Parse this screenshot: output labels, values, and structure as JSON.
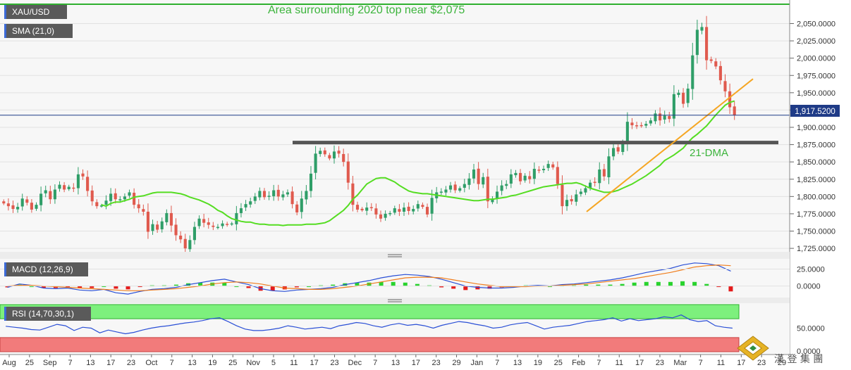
{
  "instrument": "XAU/USD",
  "price_label": "1,917.5200",
  "indicators": {
    "sma": "SMA (21,0)",
    "macd": "MACD (12,26,9)",
    "rsi": "RSI (14,70,30,1)"
  },
  "annotations": {
    "top_note": "Area surrounding 2020 top near $2,075",
    "dma_label": "21-DMA"
  },
  "watermark_text": "漢 登 集 團",
  "x_ticks": [
    "Aug",
    "25",
    "Sep",
    "7",
    "13",
    "17",
    "23",
    "Oct",
    "7",
    "13",
    "19",
    "25",
    "Nov",
    "5",
    "11",
    "17",
    "23",
    "Dec",
    "7",
    "13",
    "17",
    "23",
    "29",
    "Jan",
    "7",
    "13",
    "19",
    "25",
    "Feb",
    "7",
    "11",
    "17",
    "23",
    "Mar",
    "7",
    "11",
    "17",
    "23",
    "29"
  ],
  "chart_data": [
    {
      "type": "candlestick",
      "title": "XAU/USD",
      "ylim": [
        1720,
        2080
      ],
      "y_ticks": [
        "2,050.0000",
        "2,025.0000",
        "2,000.0000",
        "1,975.0000",
        "1,950.0000",
        "1,925.0000",
        "1,900.0000",
        "1,875.0000",
        "1,850.0000",
        "1,825.0000",
        "1,800.0000",
        "1,775.0000",
        "1,750.0000",
        "1,725.0000"
      ],
      "last_price": 1917.52,
      "support_level": 1878,
      "resistance_level": 2078,
      "trendline": [
        [
          1778,
          1970
        ]
      ],
      "sma_period": 21,
      "close_series": [
        1790,
        1786,
        1782,
        1785,
        1797,
        1791,
        1781,
        1788,
        1804,
        1809,
        1796,
        1810,
        1817,
        1810,
        1814,
        1812,
        1832,
        1829,
        1808,
        1793,
        1786,
        1787,
        1794,
        1804,
        1796,
        1796,
        1800,
        1806,
        1788,
        1783,
        1778,
        1749,
        1760,
        1752,
        1764,
        1776,
        1758,
        1744,
        1738,
        1725,
        1737,
        1756,
        1768,
        1762,
        1759,
        1756,
        1756,
        1761,
        1759,
        1761,
        1776,
        1783,
        1789,
        1793,
        1800,
        1808,
        1799,
        1801,
        1809,
        1800,
        1803,
        1806,
        1789,
        1777,
        1797,
        1808,
        1833,
        1862,
        1866,
        1861,
        1855,
        1865,
        1862,
        1850,
        1820,
        1788,
        1781,
        1780,
        1784,
        1784,
        1774,
        1768,
        1775,
        1776,
        1783,
        1778,
        1784,
        1779,
        1782,
        1789,
        1785,
        1774,
        1798,
        1806,
        1807,
        1810,
        1816,
        1809,
        1812,
        1818,
        1826,
        1839,
        1818,
        1828,
        1793,
        1797,
        1807,
        1816,
        1818,
        1832,
        1834,
        1822,
        1830,
        1825,
        1840,
        1838,
        1840,
        1847,
        1842,
        1818,
        1786,
        1795,
        1793,
        1803,
        1807,
        1812,
        1820,
        1820,
        1839,
        1829,
        1858,
        1870,
        1865,
        1877,
        1908,
        1903,
        1902,
        1903,
        1905,
        1910,
        1920,
        1910,
        1917,
        1912,
        1948,
        1950,
        1934,
        1956,
        2004,
        2041,
        2045,
        1997,
        1996,
        1988,
        1968,
        1952,
        1929,
        1917.52
      ],
      "sma_series": [
        1788,
        1786,
        1790,
        1792,
        1792,
        1794,
        1796,
        1799,
        1800,
        1801,
        1803,
        1805,
        1806,
        1806,
        1806,
        1806,
        1805,
        1804,
        1802,
        1799,
        1797,
        1795,
        1792,
        1789,
        1785,
        1780,
        1777,
        1772,
        1768,
        1766,
        1764,
        1763,
        1763,
        1761,
        1760,
        1760,
        1759,
        1759,
        1759,
        1758,
        1759,
        1759,
        1759,
        1759,
        1760,
        1760,
        1760,
        1761,
        1762,
        1765,
        1770,
        1775,
        1780,
        1787,
        1796,
        1802,
        1810,
        1818,
        1822,
        1826,
        1827,
        1827,
        1824,
        1821,
        1816,
        1812,
        1808,
        1806,
        1805,
        1804,
        1804,
        1803,
        1802,
        1801,
        1800,
        1799,
        1798,
        1797,
        1796,
        1795,
        1794,
        1794,
        1795,
        1796,
        1796,
        1797,
        1798,
        1799,
        1801,
        1802,
        1804,
        1806,
        1808,
        1810,
        1812,
        1814,
        1815,
        1816,
        1817,
        1818,
        1819,
        1819,
        1820,
        1818,
        1815,
        1812,
        1810,
        1808,
        1806,
        1806,
        1807,
        1809,
        1812,
        1815,
        1818,
        1822,
        1826,
        1830,
        1835,
        1840,
        1845,
        1852,
        1856,
        1860,
        1865,
        1870,
        1878,
        1885,
        1890,
        1896,
        1902,
        1910,
        1918,
        1925,
        1932,
        1936,
        1938
      ]
    },
    {
      "type": "macd",
      "title": "MACD (12,26,9)",
      "y_ticks": [
        "25.0000",
        "0.0000"
      ],
      "ylim": [
        -15,
        38
      ],
      "macd": [
        -2,
        3,
        1,
        -3,
        -4,
        -3,
        -6,
        -7,
        -5,
        -10,
        -12,
        -8,
        -5,
        -4,
        -2,
        2,
        5,
        8,
        10,
        6,
        2,
        -4,
        -7,
        -8,
        -6,
        -5,
        -4,
        -2,
        2,
        5,
        8,
        12,
        15,
        17,
        16,
        14,
        10,
        5,
        0,
        -2,
        -3,
        -3,
        -2,
        0,
        1,
        0,
        2,
        3,
        5,
        7,
        9,
        12,
        16,
        20,
        23,
        26,
        31,
        34,
        33,
        30,
        22
      ],
      "signal": [
        0,
        1,
        1,
        0,
        -1,
        -2,
        -3,
        -4,
        -5,
        -6,
        -7,
        -7,
        -6,
        -5,
        -4,
        -2,
        0,
        3,
        5,
        6,
        5,
        3,
        0,
        -3,
        -4,
        -5,
        -5,
        -4,
        -2,
        0,
        3,
        6,
        9,
        12,
        13,
        13,
        12,
        9,
        6,
        3,
        1,
        -1,
        -1,
        -1,
        0,
        0,
        1,
        2,
        3,
        5,
        7,
        9,
        11,
        14,
        17,
        20,
        24,
        28,
        30,
        31,
        30
      ],
      "histogram": [
        -2,
        2,
        0,
        -3,
        -3,
        -1,
        -3,
        -3,
        0,
        -4,
        -5,
        -1,
        1,
        1,
        2,
        4,
        5,
        5,
        5,
        0,
        -3,
        -7,
        -7,
        -5,
        -2,
        0,
        1,
        2,
        4,
        5,
        5,
        6,
        6,
        5,
        3,
        1,
        -2,
        -4,
        -6,
        -5,
        -4,
        -2,
        -1,
        1,
        1,
        0,
        1,
        1,
        2,
        2,
        2,
        3,
        5,
        6,
        6,
        6,
        7,
        6,
        3,
        -1,
        -8
      ]
    },
    {
      "type": "rsi",
      "title": "RSI (14,70,30,1)",
      "y_ticks": [
        "50.0000",
        "0.0000"
      ],
      "ylim": [
        0,
        100
      ],
      "overbought": 70,
      "oversold": 30,
      "values": [
        54,
        52,
        50,
        47,
        46,
        52,
        58,
        55,
        45,
        52,
        50,
        40,
        46,
        42,
        38,
        41,
        46,
        50,
        53,
        55,
        58,
        61,
        63,
        66,
        70,
        72,
        64,
        55,
        48,
        45,
        45,
        47,
        50,
        55,
        52,
        48,
        50,
        52,
        49,
        55,
        58,
        62,
        60,
        55,
        52,
        57,
        60,
        56,
        58,
        55,
        50,
        56,
        60,
        64,
        62,
        58,
        55,
        50,
        52,
        57,
        60,
        62,
        55,
        48,
        52,
        54,
        56,
        60,
        64,
        66,
        68,
        72,
        65,
        70,
        66,
        68,
        70,
        74,
        72,
        78,
        68,
        64,
        66,
        55,
        52,
        50
      ]
    }
  ]
}
